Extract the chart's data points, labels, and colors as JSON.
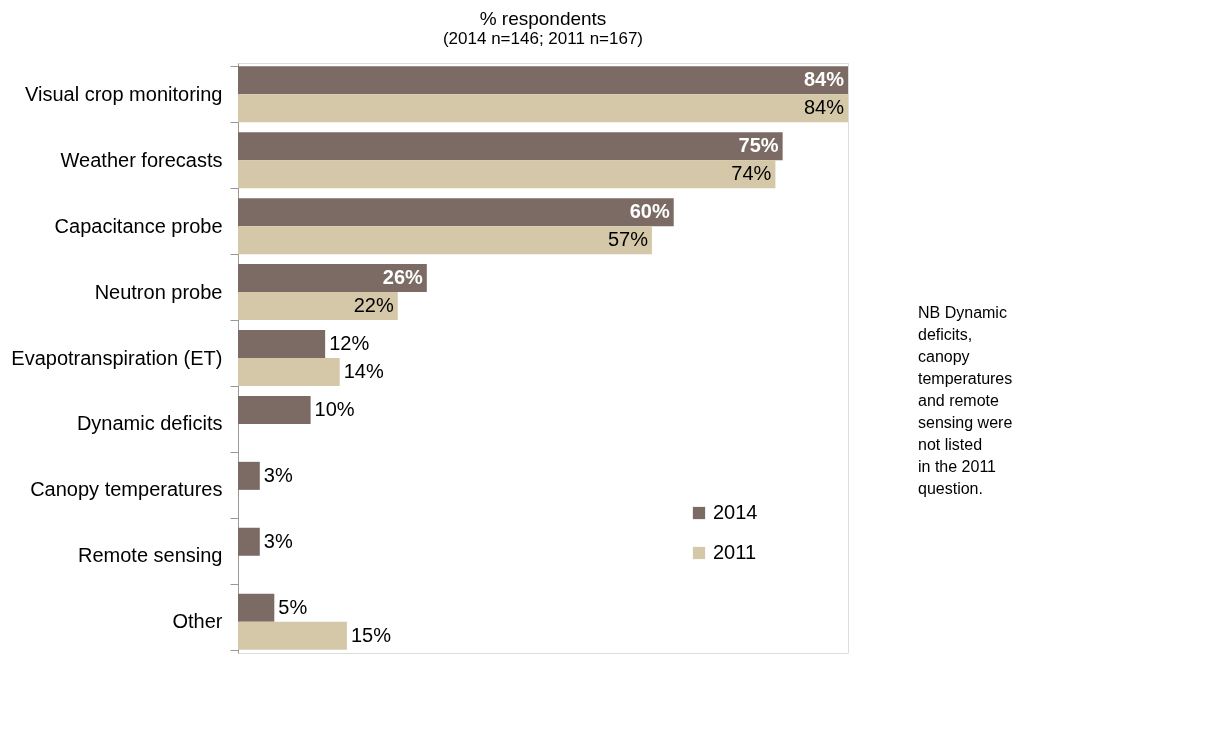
{
  "chart_data": {
    "type": "bar",
    "orientation": "horizontal",
    "title": "% respondents",
    "subtitle": "(2014 n=146; 2011 n=167)",
    "categories": [
      "Visual crop monitoring",
      "Weather forecasts",
      "Capacitance probe",
      "Neutron probe",
      "Evapotranspiration (ET)",
      "Dynamic deficits",
      "Canopy temperatures",
      "Remote sensing",
      "Other"
    ],
    "series": [
      {
        "name": "2014",
        "color": "#7b6b64",
        "values": [
          84,
          75,
          60,
          26,
          12,
          10,
          3,
          3,
          5
        ],
        "value_labels": [
          "84%",
          "75%",
          "60%",
          "26%",
          "12%",
          "10%",
          "3%",
          "3%",
          "5%"
        ]
      },
      {
        "name": "2011",
        "color": "#d4c8a9",
        "values": [
          84,
          74,
          57,
          22,
          14,
          null,
          null,
          null,
          15
        ],
        "value_labels": [
          "84%",
          "74%",
          "57%",
          "22%",
          "14%",
          null,
          null,
          null,
          "15%"
        ]
      }
    ],
    "legend": "bottom right",
    "grid": false,
    "annotations": [
      "NB Dynamic deficits, canopy temperatures and remote sensing were not listed in the 2011 question."
    ]
  }
}
